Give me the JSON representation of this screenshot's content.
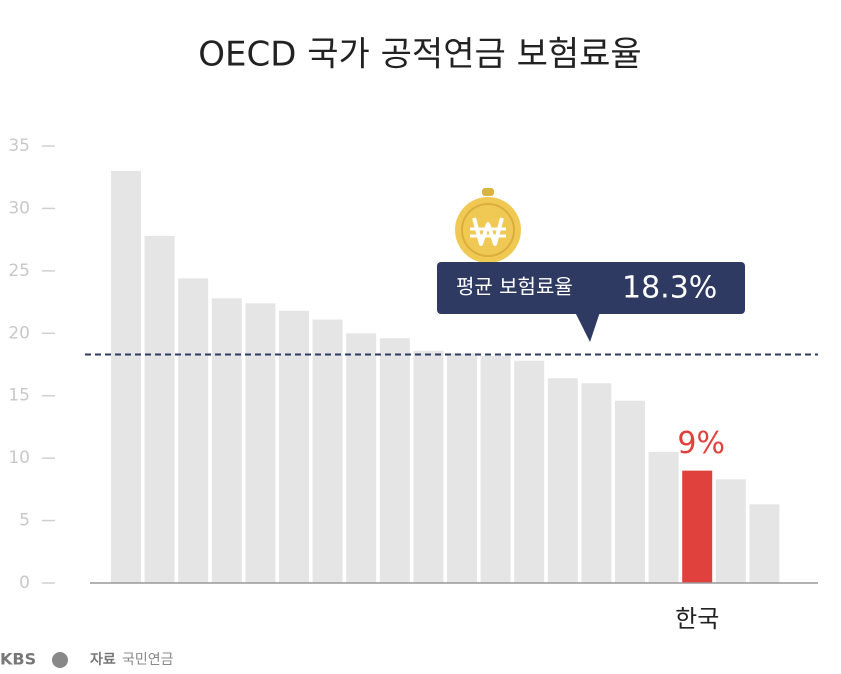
{
  "chart_data": {
    "type": "bar",
    "title": "OECD 국가 공적연금 보험료율",
    "categories": [
      null,
      null,
      null,
      null,
      null,
      null,
      null,
      null,
      null,
      null,
      null,
      null,
      null,
      null,
      null,
      null,
      null,
      "한국",
      null,
      null
    ],
    "values": [
      33.0,
      27.8,
      24.4,
      22.8,
      22.4,
      21.8,
      21.1,
      20.0,
      19.6,
      18.6,
      18.4,
      18.2,
      17.8,
      16.4,
      16.0,
      14.6,
      10.5,
      9,
      8.3,
      6.3
    ],
    "value_labels": [
      null,
      null,
      null,
      null,
      null,
      null,
      null,
      null,
      null,
      null,
      null,
      null,
      null,
      null,
      null,
      null,
      null,
      "9%",
      null,
      null
    ],
    "colors": [
      "#e5e5e5",
      "#e5e5e5",
      "#e5e5e5",
      "#e5e5e5",
      "#e5e5e5",
      "#e5e5e5",
      "#e5e5e5",
      "#e5e5e5",
      "#e5e5e5",
      "#e5e5e5",
      "#e5e5e5",
      "#e5e5e5",
      "#e5e5e5",
      "#e5e5e5",
      "#e5e5e5",
      "#e5e5e5",
      "#e5e5e5",
      "#e0413c",
      "#e5e5e5",
      "#e5e5e5"
    ],
    "ylim": [
      0,
      35
    ],
    "yticks": [
      0,
      5,
      10,
      15,
      20,
      25,
      30,
      35
    ],
    "reference_line": {
      "value": 18.3,
      "label": "18.3%",
      "text": "평균 보험료율",
      "color": "#2f3a63"
    },
    "logo": "KBS",
    "source_label": "자료",
    "source": "국민연금"
  }
}
